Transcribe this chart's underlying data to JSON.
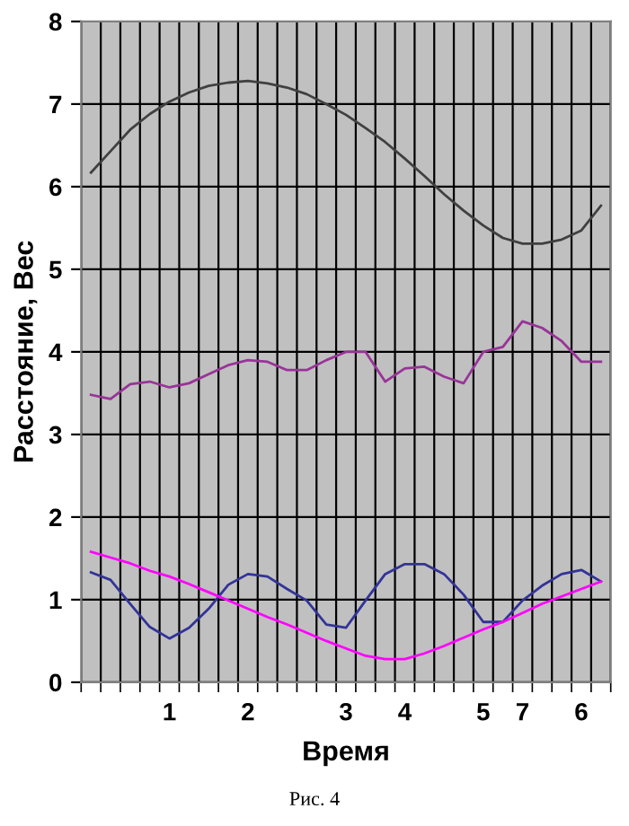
{
  "chart_data": {
    "type": "line",
    "xlabel": "Время",
    "ylabel": "Расстояние, Вес",
    "annotations": [
      "Рис. 4"
    ],
    "categories": [
      null,
      null,
      null,
      null,
      "1",
      null,
      null,
      null,
      "2",
      null,
      null,
      null,
      null,
      "3",
      null,
      null,
      "4",
      null,
      null,
      null,
      "5",
      null,
      "7",
      null,
      null,
      "6",
      null
    ],
    "series": [
      {
        "color": "#404040",
        "values": [
          6.17,
          6.43,
          6.69,
          6.88,
          7.03,
          7.14,
          7.22,
          7.26,
          7.28,
          7.25,
          7.2,
          7.12,
          7.0,
          6.87,
          6.71,
          6.54,
          6.34,
          6.13,
          5.91,
          5.71,
          5.53,
          5.38,
          5.31,
          5.31,
          5.36,
          5.47,
          5.77
        ]
      },
      {
        "color": "#993399",
        "values": [
          3.48,
          3.43,
          3.61,
          3.64,
          3.57,
          3.62,
          3.73,
          3.84,
          3.9,
          3.88,
          3.78,
          3.78,
          3.9,
          4.0,
          4.0,
          3.64,
          3.8,
          3.82,
          3.7,
          3.62,
          4.0,
          4.06,
          4.37,
          4.29,
          4.13,
          3.88,
          3.88
        ]
      },
      {
        "color": "#333399",
        "values": [
          1.33,
          1.24,
          0.95,
          0.67,
          0.53,
          0.66,
          0.89,
          1.18,
          1.31,
          1.28,
          1.13,
          0.99,
          0.7,
          0.66,
          0.99,
          1.31,
          1.43,
          1.43,
          1.31,
          1.06,
          0.73,
          0.73,
          0.99,
          1.17,
          1.31,
          1.36,
          1.22
        ]
      },
      {
        "color": "#ff00ff",
        "values": [
          1.58,
          1.51,
          1.44,
          1.35,
          1.28,
          1.19,
          1.09,
          0.99,
          0.89,
          0.79,
          0.7,
          0.6,
          0.5,
          0.41,
          0.32,
          0.28,
          0.28,
          0.35,
          0.44,
          0.54,
          0.64,
          0.73,
          0.84,
          0.95,
          1.04,
          1.13,
          1.22
        ]
      }
    ],
    "ylim": [
      0,
      8
    ],
    "yticks": [
      0,
      1,
      2,
      3,
      4,
      5,
      6,
      7,
      8
    ],
    "grid": true,
    "legend": false,
    "marker": "none",
    "line_style": "solid"
  }
}
